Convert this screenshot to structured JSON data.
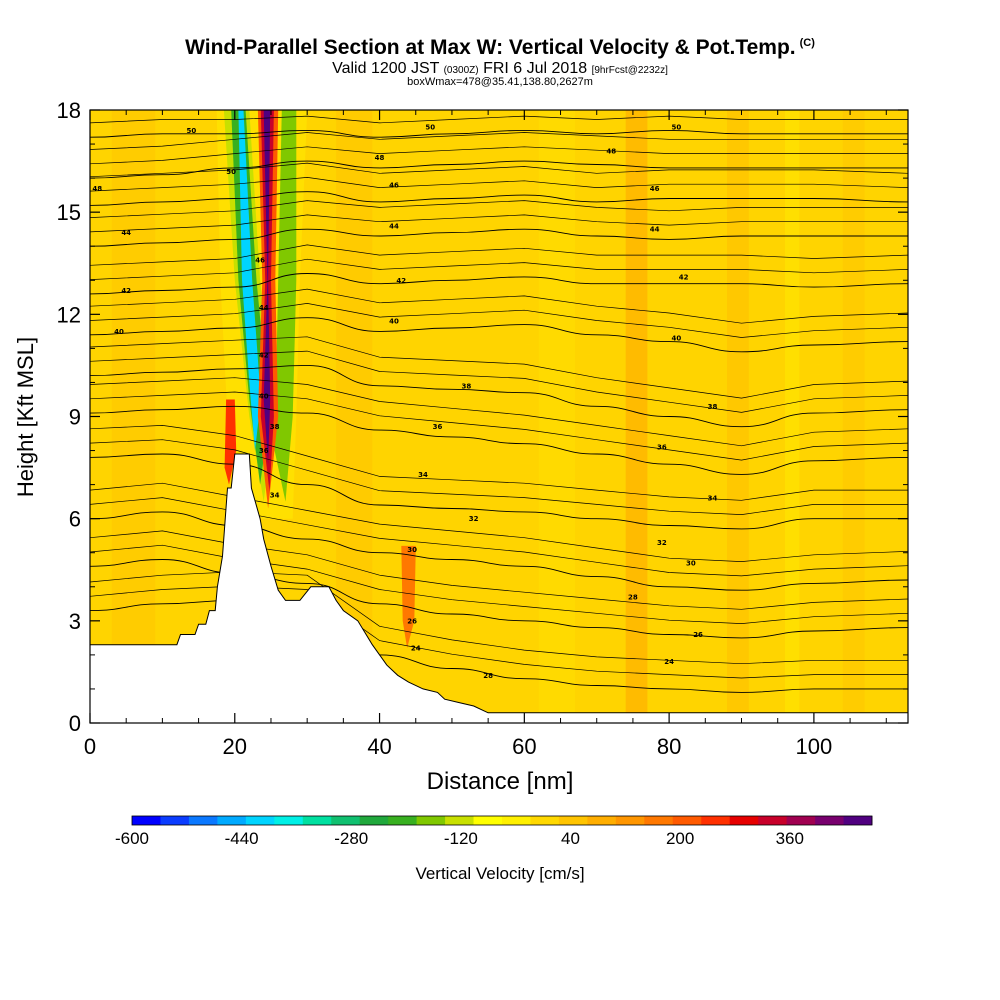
{
  "title": "Wind-Parallel Section at Max W: Vertical Velocity & Pot.Temp.",
  "copyright": "(C)",
  "subtitle_main_a": "Valid 1200 JST",
  "subtitle_small_a": "(0300Z)",
  "subtitle_main_b": "FRI 6 Jul 2018",
  "subtitle_small_b": "[9hrFcst@2232z]",
  "subtitle2": "boxWmax=478@35.41,138.80,2627m",
  "chart_data": {
    "type": "heatmap",
    "xlabel": "Distance [nm]",
    "ylabel": "Height [Kft MSL]",
    "xlim": [
      0,
      113
    ],
    "ylim": [
      0,
      18
    ],
    "x_ticks": [
      "0",
      "20",
      "40",
      "60",
      "80",
      "100"
    ],
    "x_tick_values": [
      0,
      20,
      40,
      60,
      80,
      100
    ],
    "y_ticks": [
      "0",
      "3",
      "6",
      "9",
      "12",
      "15",
      "18"
    ],
    "y_tick_values": [
      0,
      3,
      6,
      9,
      12,
      15,
      18
    ],
    "colorbar": {
      "label": "Vertical Velocity [cm/s]",
      "range": [
        -600,
        480
      ],
      "tick_labels": [
        "-600",
        "-440",
        "-280",
        "-120",
        "40",
        "200",
        "360"
      ],
      "tick_values": [
        -600,
        -440,
        -280,
        -120,
        40,
        200,
        360
      ],
      "colors": [
        "#0000ff",
        "#0a3cff",
        "#0a78ff",
        "#00aaff",
        "#00d4ff",
        "#00f0e6",
        "#00e0a0",
        "#10c070",
        "#20a83c",
        "#38b020",
        "#80c800",
        "#c8e000",
        "#ffff00",
        "#fff000",
        "#ffd800",
        "#ffc400",
        "#ffae00",
        "#ff9600",
        "#ff7800",
        "#ff5a00",
        "#ff3000",
        "#e60000",
        "#c8002a",
        "#a00050",
        "#78006e",
        "#500080"
      ]
    },
    "terrain": [
      [
        0,
        2.3
      ],
      [
        12,
        2.3
      ],
      [
        12.5,
        2.6
      ],
      [
        14.5,
        2.6
      ],
      [
        15,
        2.9
      ],
      [
        16,
        2.9
      ],
      [
        16.5,
        3.3
      ],
      [
        17.3,
        3.3
      ],
      [
        17.6,
        4.0
      ],
      [
        18.3,
        4.9
      ],
      [
        19.0,
        6.9
      ],
      [
        19.5,
        6.9
      ],
      [
        20.0,
        7.9
      ],
      [
        22.0,
        7.9
      ],
      [
        22.3,
        6.9
      ],
      [
        23.5,
        6.0
      ],
      [
        24.0,
        5.4
      ],
      [
        25.0,
        4.6
      ],
      [
        26.0,
        3.9
      ],
      [
        27.0,
        3.6
      ],
      [
        29.0,
        3.6
      ],
      [
        30.5,
        4.0
      ],
      [
        33,
        4.0
      ],
      [
        34,
        3.6
      ],
      [
        35,
        3.3
      ],
      [
        37,
        3.0
      ],
      [
        39,
        2.3
      ],
      [
        40,
        2.0
      ],
      [
        41,
        1.7
      ],
      [
        42.5,
        1.4
      ],
      [
        44,
        1.2
      ],
      [
        46,
        1.0
      ],
      [
        48,
        0.9
      ],
      [
        49,
        0.7
      ],
      [
        51,
        0.6
      ],
      [
        53,
        0.5
      ],
      [
        55,
        0.3
      ],
      [
        57,
        0.3
      ],
      [
        113,
        0.3
      ]
    ],
    "theta_contours": [
      {
        "value": 50,
        "y": [
          17.2,
          17.3,
          17.3,
          17.4,
          17.2,
          17.3,
          17.4,
          17.3,
          17.4,
          17.3,
          17.3,
          17.3
        ]
      },
      {
        "value": 48,
        "y": [
          16.0,
          16.1,
          16.3,
          16.5,
          16.3,
          16.4,
          16.5,
          16.4,
          16.3,
          16.3,
          16.3,
          16.3
        ]
      },
      {
        "value": 46,
        "y": [
          15.2,
          15.3,
          15.4,
          15.6,
          15.3,
          15.4,
          15.5,
          15.3,
          15.4,
          15.4,
          15.4,
          15.3
        ]
      },
      {
        "value": 44,
        "y": [
          14.0,
          14.1,
          14.2,
          14.5,
          14.3,
          14.4,
          14.5,
          14.3,
          14.2,
          14.3,
          14.3,
          14.3
        ]
      },
      {
        "value": 42,
        "y": [
          12.6,
          12.7,
          12.8,
          13.2,
          12.9,
          13.0,
          13.1,
          12.9,
          12.9,
          12.9,
          12.8,
          12.9
        ]
      },
      {
        "value": 40,
        "y": [
          11.4,
          11.5,
          11.6,
          11.9,
          11.5,
          11.6,
          11.7,
          11.4,
          11.2,
          10.9,
          11.1,
          11.2
        ]
      },
      {
        "value": 38,
        "y": [
          10.2,
          10.3,
          10.4,
          10.5,
          9.9,
          9.8,
          9.7,
          9.3,
          9.0,
          8.7,
          9.1,
          9.2
        ]
      },
      {
        "value": 36,
        "y": [
          9.1,
          9.2,
          9.3,
          9.1,
          8.6,
          8.4,
          8.2,
          7.9,
          7.6,
          7.3,
          7.7,
          7.8
        ]
      },
      {
        "value": 34,
        "y": [
          7.8,
          7.9,
          7.6,
          7.0,
          6.4,
          6.3,
          6.2,
          6.0,
          5.8,
          5.7,
          6.0,
          6.0
        ]
      },
      {
        "value": 32,
        "y": [
          6.0,
          6.2,
          5.8,
          5.4,
          5.0,
          4.8,
          4.6,
          4.3,
          4.0,
          3.9,
          4.1,
          4.2
        ]
      },
      {
        "value": 30,
        "y": [
          4.6,
          4.8,
          4.4,
          4.1,
          3.5,
          3.2,
          3.0,
          2.8,
          2.6,
          2.5,
          2.7,
          2.8
        ]
      },
      {
        "value": 28,
        "y": [
          3.3,
          3.5,
          3.6,
          3.5,
          2.0,
          1.6,
          1.3,
          1.1,
          1.0,
          0.9,
          1.0,
          1.0
        ]
      }
    ],
    "contour_x": [
      0,
      10,
      20,
      30,
      40,
      50,
      60,
      70,
      80,
      90,
      100,
      113
    ],
    "contour_labels": [
      {
        "text": "50",
        "x": 14,
        "y": 17.4
      },
      {
        "text": "50",
        "x": 47,
        "y": 17.5
      },
      {
        "text": "50",
        "x": 81,
        "y": 17.5
      },
      {
        "text": "48",
        "x": 1,
        "y": 15.7
      },
      {
        "text": "48",
        "x": 40,
        "y": 16.6
      },
      {
        "text": "48",
        "x": 72,
        "y": 16.8
      },
      {
        "text": "46",
        "x": 42,
        "y": 15.8
      },
      {
        "text": "46",
        "x": 78,
        "y": 15.7
      },
      {
        "text": "44",
        "x": 5,
        "y": 14.4
      },
      {
        "text": "44",
        "x": 42,
        "y": 14.6
      },
      {
        "text": "44",
        "x": 78,
        "y": 14.5
      },
      {
        "text": "42",
        "x": 5,
        "y": 12.7
      },
      {
        "text": "42",
        "x": 43,
        "y": 13.0
      },
      {
        "text": "42",
        "x": 82,
        "y": 13.1
      },
      {
        "text": "40",
        "x": 4,
        "y": 11.5
      },
      {
        "text": "40",
        "x": 42,
        "y": 11.8
      },
      {
        "text": "40",
        "x": 81,
        "y": 11.3
      },
      {
        "text": "38",
        "x": 52,
        "y": 9.9
      },
      {
        "text": "38",
        "x": 86,
        "y": 9.3
      },
      {
        "text": "36",
        "x": 48,
        "y": 8.7
      },
      {
        "text": "36",
        "x": 79,
        "y": 8.1
      },
      {
        "text": "34",
        "x": 46,
        "y": 7.3
      },
      {
        "text": "34",
        "x": 86,
        "y": 6.6
      },
      {
        "text": "32",
        "x": 53,
        "y": 6.0
      },
      {
        "text": "32",
        "x": 79,
        "y": 5.3
      },
      {
        "text": "30",
        "x": 44.5,
        "y": 5.1
      },
      {
        "text": "30",
        "x": 83,
        "y": 4.7
      },
      {
        "text": "28",
        "x": 75,
        "y": 3.7
      },
      {
        "text": "26",
        "x": 44.5,
        "y": 3.0
      },
      {
        "text": "26",
        "x": 84,
        "y": 2.6
      },
      {
        "text": "24",
        "x": 45,
        "y": 2.2
      },
      {
        "text": "24",
        "x": 80,
        "y": 1.8
      },
      {
        "text": "28",
        "x": 55,
        "y": 1.4
      },
      {
        "text": "50",
        "x": 19.5,
        "y": 16.2
      },
      {
        "text": "46",
        "x": 23.5,
        "y": 13.6
      },
      {
        "text": "44",
        "x": 24,
        "y": 12.2
      },
      {
        "text": "42",
        "x": 24,
        "y": 10.8
      },
      {
        "text": "40",
        "x": 24,
        "y": 9.6
      },
      {
        "text": "38",
        "x": 25.5,
        "y": 8.7
      },
      {
        "text": "36",
        "x": 24,
        "y": 8.0
      },
      {
        "text": "34",
        "x": 25.5,
        "y": 6.7
      }
    ]
  }
}
